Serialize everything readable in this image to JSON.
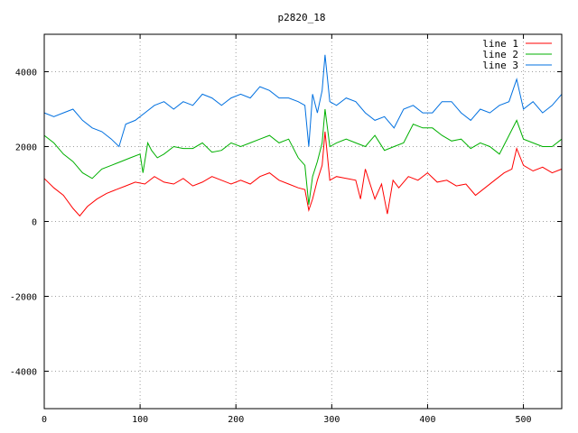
{
  "chart_data": {
    "type": "line",
    "title": "p2820_18",
    "xlabel": "",
    "ylabel": "",
    "xlim": [
      0,
      540
    ],
    "ylim": [
      -5000,
      5000
    ],
    "x_ticks": [
      0,
      100,
      200,
      300,
      400,
      500
    ],
    "y_ticks": [
      -4000,
      -2000,
      0,
      2000,
      4000
    ],
    "grid": true,
    "legend_position": "top-right",
    "series": [
      {
        "name": "line 1",
        "color": "#ff0000",
        "x": [
          0,
          10,
          20,
          30,
          37,
          45,
          55,
          65,
          75,
          85,
          95,
          105,
          115,
          125,
          135,
          145,
          155,
          165,
          175,
          185,
          195,
          205,
          215,
          225,
          235,
          245,
          255,
          265,
          272,
          276,
          280,
          285,
          290,
          293,
          298,
          305,
          315,
          325,
          330,
          335,
          345,
          352,
          358,
          364,
          370,
          380,
          390,
          400,
          410,
          420,
          430,
          440,
          450,
          460,
          470,
          480,
          488,
          493,
          500,
          510,
          520,
          530,
          540
        ],
        "y": [
          1150,
          900,
          700,
          350,
          150,
          400,
          600,
          750,
          850,
          950,
          1050,
          1000,
          1200,
          1050,
          1000,
          1150,
          950,
          1050,
          1200,
          1100,
          1000,
          1100,
          1000,
          1200,
          1300,
          1100,
          1000,
          900,
          850,
          300,
          600,
          1100,
          1500,
          2400,
          1100,
          1200,
          1150,
          1100,
          600,
          1400,
          600,
          1000,
          200,
          1100,
          900,
          1200,
          1100,
          1300,
          1050,
          1100,
          950,
          1000,
          700,
          900,
          1100,
          1300,
          1400,
          1950,
          1500,
          1350,
          1450,
          1300,
          1400
        ]
      },
      {
        "name": "line 2",
        "color": "#00b000",
        "x": [
          0,
          10,
          20,
          30,
          40,
          50,
          60,
          70,
          80,
          90,
          100,
          103,
          108,
          112,
          118,
          125,
          135,
          145,
          155,
          165,
          175,
          185,
          195,
          205,
          215,
          225,
          235,
          245,
          255,
          265,
          272,
          276,
          280,
          285,
          290,
          293,
          298,
          305,
          315,
          325,
          335,
          345,
          355,
          365,
          375,
          385,
          395,
          405,
          415,
          425,
          435,
          445,
          455,
          465,
          475,
          485,
          493,
          500,
          510,
          520,
          530,
          540
        ],
        "y": [
          2300,
          2100,
          1800,
          1600,
          1300,
          1150,
          1400,
          1500,
          1600,
          1700,
          1800,
          1300,
          2100,
          1900,
          1700,
          1800,
          2000,
          1950,
          1950,
          2100,
          1850,
          1900,
          2100,
          2000,
          2100,
          2200,
          2300,
          2100,
          2200,
          1700,
          1500,
          450,
          1200,
          1600,
          2100,
          3000,
          2000,
          2100,
          2200,
          2100,
          2000,
          2300,
          1900,
          2000,
          2100,
          2600,
          2500,
          2500,
          2300,
          2150,
          2200,
          1950,
          2100,
          2000,
          1800,
          2300,
          2700,
          2200,
          2100,
          2000,
          2000,
          2200
        ]
      },
      {
        "name": "line 3",
        "color": "#0070e0",
        "x": [
          0,
          10,
          20,
          30,
          40,
          50,
          60,
          70,
          78,
          85,
          95,
          105,
          115,
          125,
          135,
          145,
          155,
          165,
          175,
          185,
          195,
          205,
          215,
          225,
          235,
          245,
          255,
          265,
          272,
          276,
          280,
          285,
          290,
          293,
          298,
          305,
          315,
          325,
          335,
          345,
          355,
          365,
          375,
          385,
          395,
          405,
          415,
          425,
          435,
          445,
          455,
          465,
          475,
          485,
          493,
          500,
          510,
          520,
          530,
          540
        ],
        "y": [
          2900,
          2800,
          2900,
          3000,
          2700,
          2500,
          2400,
          2200,
          2000,
          2600,
          2700,
          2900,
          3100,
          3200,
          3000,
          3200,
          3100,
          3400,
          3300,
          3100,
          3300,
          3400,
          3300,
          3600,
          3500,
          3300,
          3300,
          3200,
          3100,
          2000,
          3400,
          2900,
          3500,
          4450,
          3200,
          3100,
          3300,
          3200,
          2900,
          2700,
          2800,
          2500,
          3000,
          3100,
          2900,
          2900,
          3200,
          3200,
          2900,
          2700,
          3000,
          2900,
          3100,
          3200,
          3800,
          3000,
          3200,
          2900,
          3100,
          3400
        ]
      }
    ]
  }
}
